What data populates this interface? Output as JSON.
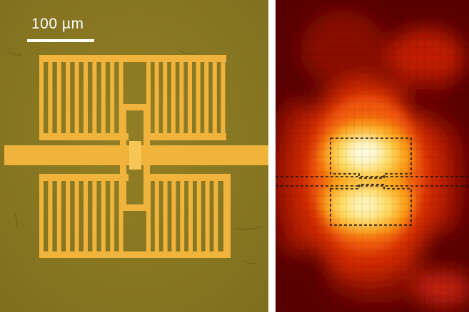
{
  "left_panel": {
    "scale_bar": {
      "label": "100 µm"
    },
    "colors": {
      "substrate": "#8c7a22",
      "metal": "#f0b43c",
      "metal_edge": "#d99a2a",
      "scale_bar": "#ffffff"
    }
  },
  "right_panel": {
    "colormap": "hot",
    "colors": {
      "outline": "#111111"
    }
  }
}
